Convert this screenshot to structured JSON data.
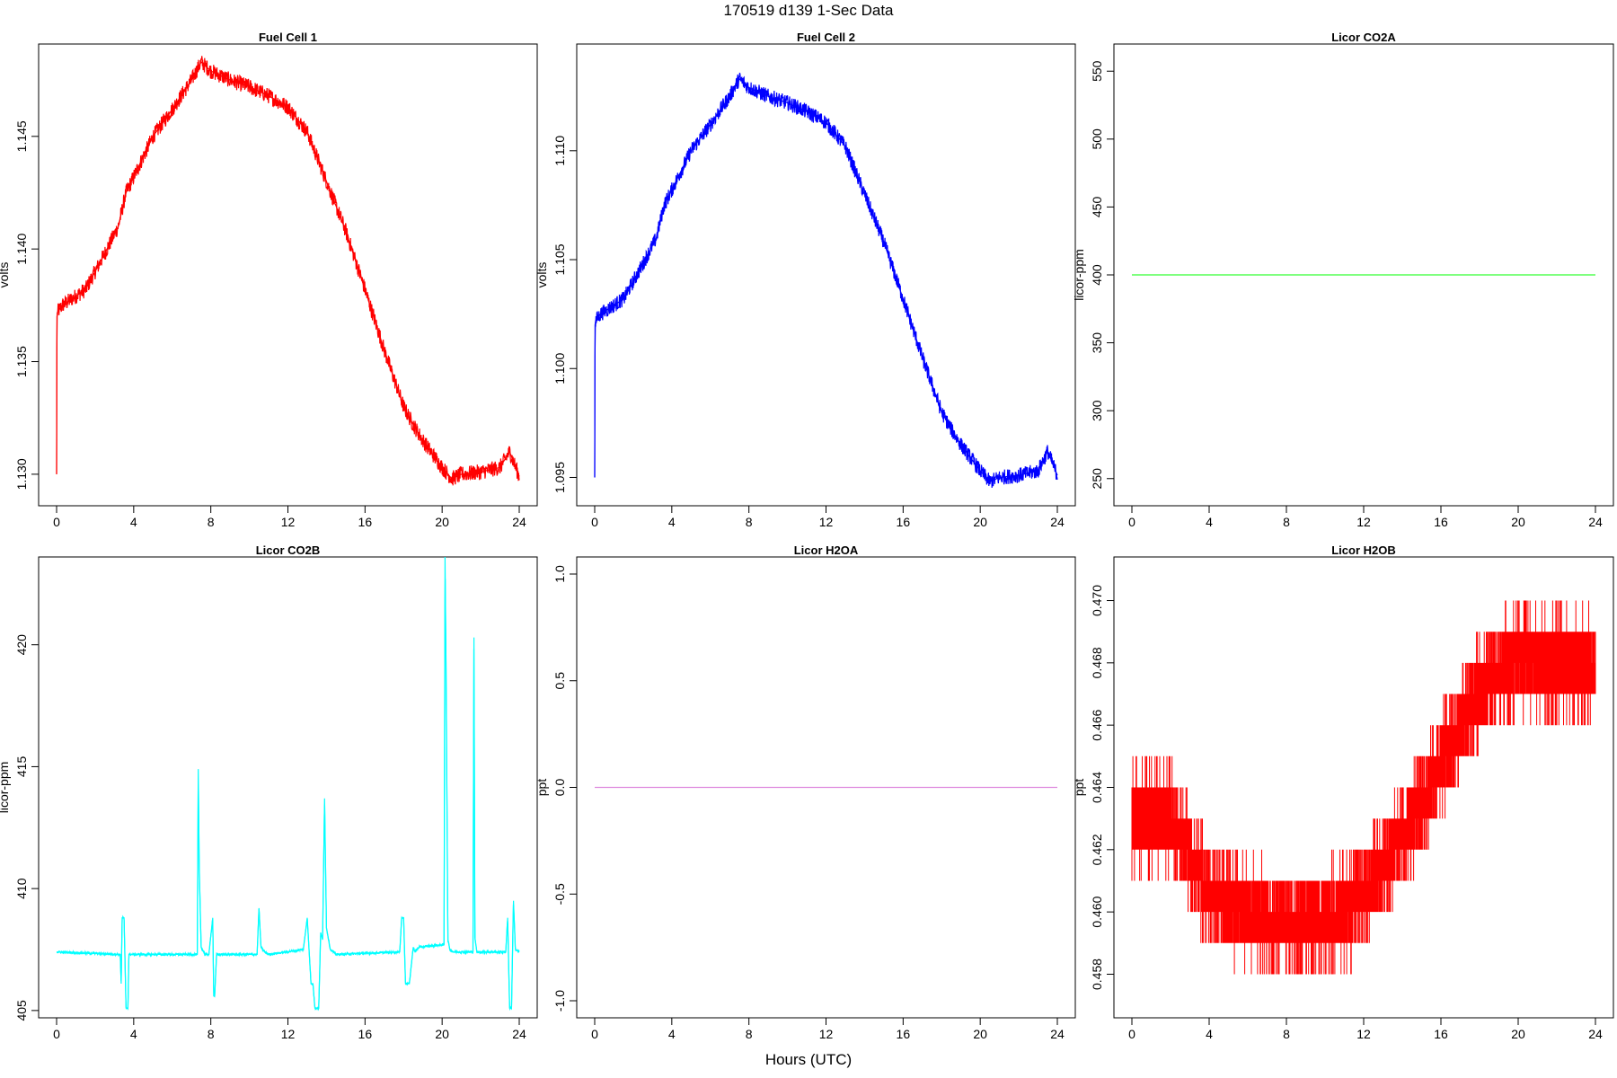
{
  "figure": {
    "title": "170519   d139   1-Sec Data",
    "xlabel": "Hours (UTC)"
  },
  "chart_data": [
    {
      "type": "line",
      "title": "Fuel Cell 1",
      "ylabel": "volts",
      "xlim": [
        0,
        24
      ],
      "ylim": [
        1.1286,
        1.1491
      ],
      "xticks": [
        0,
        4,
        8,
        12,
        16,
        20,
        24
      ],
      "yticks": [
        1.13,
        1.135,
        1.14,
        1.145
      ],
      "ytick_labels": [
        "1.130",
        "1.135",
        "1.140",
        "1.145"
      ],
      "color": "#ff0000",
      "noise": 0.00035,
      "series": [
        {
          "name": "Fuel Cell 1",
          "x": [
            0,
            0.02,
            0.05,
            0.3,
            1.5,
            2.5,
            3.2,
            3.6,
            4.0,
            5.0,
            6.0,
            7.0,
            7.5,
            8.0,
            9.0,
            10.0,
            11.0,
            12.0,
            13.0,
            14.0,
            15.0,
            16.0,
            17.0,
            18.0,
            18.5,
            19.0,
            20.0,
            20.5,
            21.0,
            22.0,
            23.0,
            23.5,
            24.0
          ],
          "y": [
            1.13,
            1.137,
            1.1372,
            1.1375,
            1.1382,
            1.1398,
            1.141,
            1.1425,
            1.1432,
            1.145,
            1.1462,
            1.1475,
            1.1483,
            1.1479,
            1.1475,
            1.1472,
            1.1468,
            1.1463,
            1.1452,
            1.143,
            1.1408,
            1.1382,
            1.1355,
            1.133,
            1.1322,
            1.1315,
            1.1303,
            1.1298,
            1.13,
            1.1301,
            1.1303,
            1.131,
            1.1299
          ]
        }
      ]
    },
    {
      "type": "line",
      "title": "Fuel Cell 2",
      "ylabel": "volts",
      "xlim": [
        0,
        24
      ],
      "ylim": [
        1.0937,
        1.1149
      ],
      "xticks": [
        0,
        4,
        8,
        12,
        16,
        20,
        24
      ],
      "yticks": [
        1.095,
        1.1,
        1.105,
        1.11
      ],
      "ytick_labels": [
        "1.095",
        "1.100",
        "1.105",
        "1.110"
      ],
      "color": "#0000ff",
      "noise": 0.00035,
      "series": [
        {
          "name": "Fuel Cell 2",
          "x": [
            0,
            0.02,
            0.05,
            0.3,
            1.5,
            2.5,
            3.2,
            3.6,
            4.0,
            5.0,
            6.0,
            7.0,
            7.5,
            8.0,
            9.0,
            10.0,
            11.0,
            12.0,
            13.0,
            14.0,
            15.0,
            16.0,
            17.0,
            18.0,
            18.5,
            19.0,
            20.0,
            20.5,
            21.0,
            22.0,
            23.0,
            23.5,
            24.0
          ],
          "y": [
            1.095,
            1.102,
            1.1022,
            1.1025,
            1.1032,
            1.1048,
            1.106,
            1.1075,
            1.1082,
            1.11,
            1.1112,
            1.1125,
            1.1133,
            1.1129,
            1.1125,
            1.1122,
            1.1118,
            1.1113,
            1.1102,
            1.108,
            1.1058,
            1.1032,
            1.1005,
            1.098,
            1.0972,
            1.0965,
            1.0953,
            1.0948,
            1.095,
            1.0951,
            1.0953,
            1.0962,
            1.0951
          ]
        }
      ]
    },
    {
      "type": "line",
      "title": "Licor CO2A",
      "ylabel": "licor-ppm",
      "xlim": [
        0,
        24
      ],
      "ylim": [
        230,
        570
      ],
      "xticks": [
        0,
        4,
        8,
        12,
        16,
        20,
        24
      ],
      "yticks": [
        250,
        300,
        350,
        400,
        450,
        500,
        550
      ],
      "ytick_labels": [
        "250",
        "300",
        "350",
        "400",
        "450",
        "500",
        "550"
      ],
      "color": "#33ff33",
      "noise": 0,
      "series": [
        {
          "name": "Licor CO2A",
          "x": [
            0,
            24
          ],
          "y": [
            400,
            400
          ]
        }
      ]
    },
    {
      "type": "line",
      "title": "Licor CO2B",
      "ylabel": "licor-ppm",
      "xlim": [
        0,
        24
      ],
      "ylim": [
        404.7,
        423.6
      ],
      "xticks": [
        0,
        4,
        8,
        12,
        16,
        20,
        24
      ],
      "yticks": [
        405,
        410,
        415,
        420
      ],
      "ytick_labels": [
        "405",
        "410",
        "415",
        "420"
      ],
      "color": "#00ffff",
      "noise": 0.05,
      "series": [
        {
          "name": "Licor CO2B",
          "x": [
            0,
            3.3,
            3.35,
            3.4,
            3.5,
            3.6,
            3.7,
            3.75,
            7.3,
            7.35,
            7.4,
            7.5,
            7.7,
            7.9,
            8.1,
            8.15,
            8.2,
            8.3,
            8.4,
            10.4,
            10.5,
            10.6,
            10.8,
            11.0,
            12.8,
            13.0,
            13.2,
            13.3,
            13.4,
            13.6,
            13.7,
            13.8,
            13.9,
            14.0,
            14.2,
            14.5,
            17.8,
            17.9,
            18.0,
            18.1,
            18.3,
            18.5,
            18.6,
            18.8,
            20.1,
            20.15,
            20.2,
            20.3,
            20.4,
            20.6,
            21.6,
            21.65,
            21.7,
            21.8,
            23.3,
            23.4,
            23.5,
            23.6,
            23.7,
            23.8,
            24.0
          ],
          "y": [
            407.4,
            407.3,
            406.1,
            408.8,
            408.8,
            405.1,
            405.1,
            407.3,
            407.3,
            414.9,
            410.8,
            407.6,
            407.3,
            407.3,
            408.8,
            405.6,
            405.6,
            407.3,
            407.3,
            407.3,
            409.2,
            407.6,
            407.4,
            407.3,
            407.5,
            408.8,
            406.1,
            406.1,
            405.1,
            405.1,
            408.2,
            407.9,
            413.7,
            408.4,
            407.5,
            407.3,
            407.4,
            408.8,
            408.8,
            406.1,
            406.1,
            407.6,
            407.4,
            407.6,
            407.7,
            423.6,
            419.3,
            407.9,
            407.5,
            407.4,
            407.4,
            420.3,
            408.0,
            407.4,
            407.4,
            408.8,
            405.1,
            405.1,
            409.5,
            407.5,
            407.4
          ]
        }
      ]
    },
    {
      "type": "line",
      "title": "Licor H2OA",
      "ylabel": "ppt",
      "xlim": [
        0,
        24
      ],
      "ylim": [
        -1.08,
        1.08
      ],
      "xticks": [
        0,
        4,
        8,
        12,
        16,
        20,
        24
      ],
      "yticks": [
        -1.0,
        -0.5,
        0.0,
        0.5,
        1.0
      ],
      "ytick_labels": [
        "-1.0",
        "-0.5",
        "0.0",
        "0.5",
        "1.0"
      ],
      "color": "#dd88dd",
      "noise": 0,
      "series": [
        {
          "name": "Licor H2OA",
          "x": [
            0,
            24
          ],
          "y": [
            0,
            0
          ]
        }
      ]
    },
    {
      "type": "line",
      "title": "Licor H2OB",
      "ylabel": "ppt",
      "xlim": [
        0,
        24
      ],
      "ylim": [
        0.4566,
        0.4714
      ],
      "xticks": [
        0,
        4,
        8,
        12,
        16,
        20,
        24
      ],
      "yticks": [
        0.458,
        0.46,
        0.462,
        0.464,
        0.466,
        0.468,
        0.47
      ],
      "ytick_labels": [
        "0.458",
        "0.460",
        "0.462",
        "0.464",
        "0.466",
        "0.468",
        "0.470"
      ],
      "color": "#ff0000",
      "noise": 0,
      "step": 0.001,
      "series": [
        {
          "name": "Licor H2OB",
          "x": [
            0,
            1,
            2,
            3,
            4,
            5,
            6,
            7,
            8,
            9,
            10,
            11,
            12,
            13,
            14,
            15,
            16,
            17,
            18,
            19,
            20,
            21,
            22,
            23,
            24
          ],
          "y": [
            0.463,
            0.463,
            0.463,
            0.462,
            0.4605,
            0.4602,
            0.46,
            0.4598,
            0.4598,
            0.4598,
            0.4598,
            0.46,
            0.4605,
            0.4615,
            0.4625,
            0.4635,
            0.4648,
            0.466,
            0.467,
            0.4678,
            0.4682,
            0.468,
            0.468,
            0.468,
            0.4678
          ]
        }
      ]
    }
  ]
}
